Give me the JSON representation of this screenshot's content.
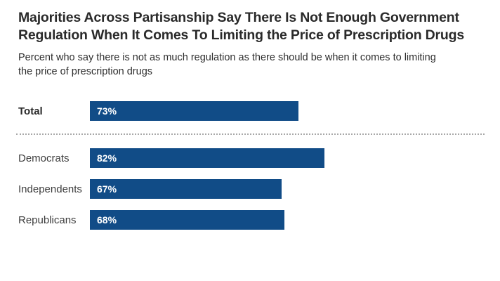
{
  "header": {
    "title_line1": "Majorities Across Partisanship Say There Is Not Enough Government",
    "title_line2": "Regulation When It Comes To Limiting the Price of Prescription Drugs",
    "subtitle_line1": "Percent who say there is not as much regulation as there should be when it comes to limiting",
    "subtitle_line2": "the price of prescription drugs"
  },
  "chart_data": {
    "type": "bar",
    "orientation": "horizontal",
    "title": "Majorities Across Partisanship Say There Is Not Enough Government Regulation When It Comes To Limiting the Price of Prescription Drugs",
    "subtitle": "Percent who say there is not as much regulation as there should be when it comes to limiting the price of prescription drugs",
    "categories": [
      "Total",
      "Democrats",
      "Independents",
      "Republicans"
    ],
    "values": [
      73,
      82,
      67,
      68
    ],
    "value_labels": [
      "73%",
      "82%",
      "67%",
      "68%"
    ],
    "xlabel": "",
    "ylabel": "",
    "xlim": [
      0,
      100
    ],
    "grid": false,
    "legend": false,
    "value_label_position": "inside-left",
    "separator_after_category": "Total"
  },
  "rows": [
    {
      "label": "Total",
      "value": 73,
      "value_label": "73%",
      "emphasis": true
    },
    {
      "label": "Democrats",
      "value": 82,
      "value_label": "82%",
      "emphasis": false
    },
    {
      "label": "Independents",
      "value": 67,
      "value_label": "67%",
      "emphasis": false
    },
    {
      "label": "Republicans",
      "value": 68,
      "value_label": "68%",
      "emphasis": false
    }
  ],
  "colors": {
    "background": "#FFFFFF",
    "bar": "#114C87",
    "bar_value_text": "#FFFFFF",
    "title_text": "#2A2A2A",
    "subtitle_text": "#2E2E2E",
    "category_label_text": "#3D3D3D",
    "separator_dots": "#A9A9A9"
  }
}
